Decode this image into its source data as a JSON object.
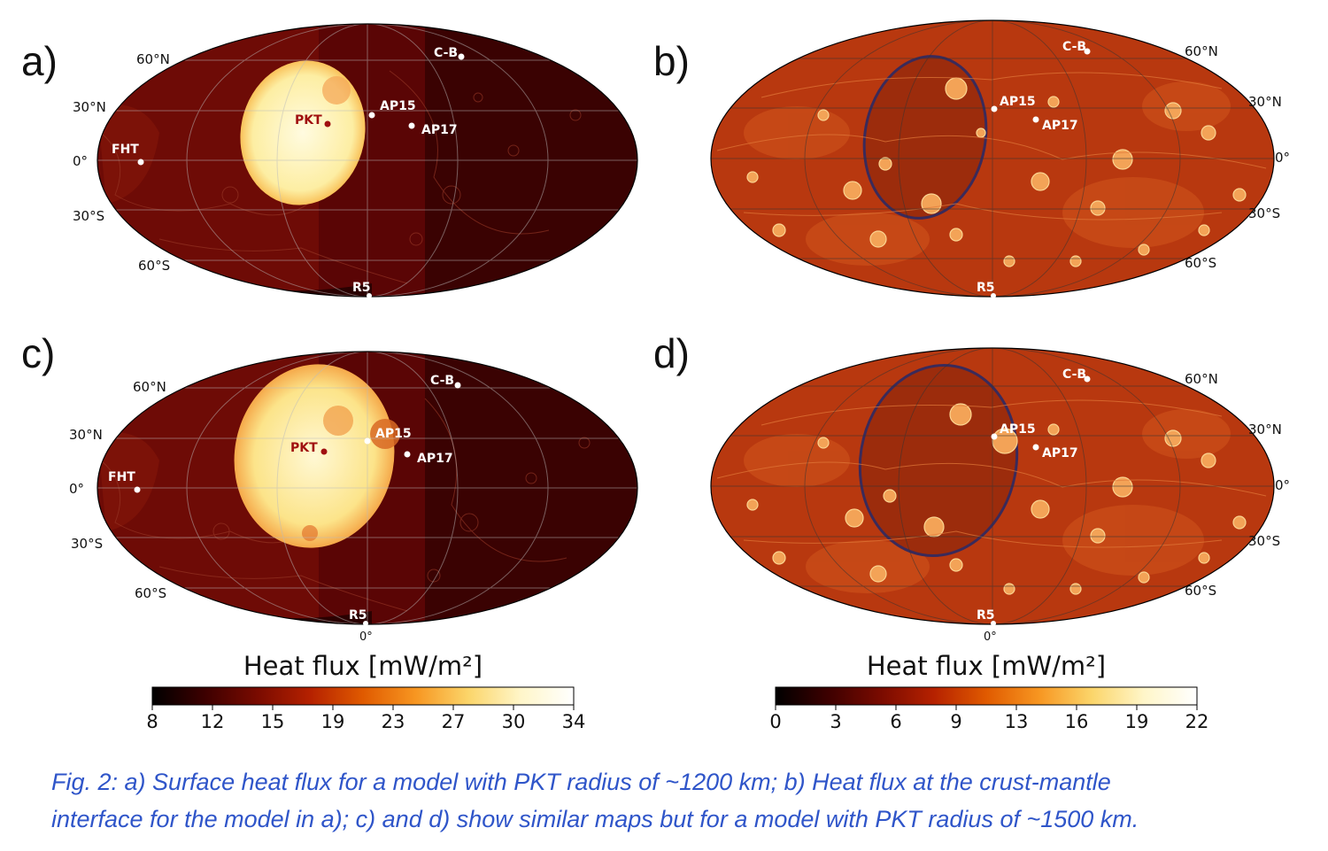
{
  "panels": [
    {
      "id": "a",
      "letter": "a)",
      "variant": "surface",
      "pkt": "small"
    },
    {
      "id": "b",
      "letter": "b)",
      "variant": "interface",
      "pkt": "small"
    },
    {
      "id": "c",
      "letter": "c)",
      "variant": "surface",
      "pkt": "large"
    },
    {
      "id": "d",
      "letter": "d)",
      "variant": "interface",
      "pkt": "large"
    }
  ],
  "lat_labels": {
    "n60": "60°N",
    "n30": "30°N",
    "eq": "0°",
    "s30": "30°S",
    "s60": "60°S"
  },
  "lon_label": "0°",
  "sites": {
    "pkt": "PKT",
    "ap15": "AP15",
    "ap17": "AP17",
    "cb": "C-B",
    "fht": "FHT",
    "r5": "R5"
  },
  "colorbars": {
    "left": {
      "title": "Heat flux [mW/m²]",
      "ticks": [
        "8",
        "12",
        "15",
        "19",
        "23",
        "27",
        "30",
        "34"
      ]
    },
    "right": {
      "title": "Heat flux [mW/m²]",
      "ticks": [
        "0",
        "3",
        "6",
        "9",
        "13",
        "16",
        "19",
        "22"
      ]
    }
  },
  "colormap": [
    "#000000",
    "#3d0000",
    "#7a0b00",
    "#b52100",
    "#e05a00",
    "#f79621",
    "#fbd56a",
    "#fff6c9",
    "#ffffff"
  ],
  "caption": [
    "Fig. 2: a) Surface heat flux for a model with PKT radius of ~1200 km; b) Heat flux at the crust-mantle",
    "interface for the model in a); c) and d) show similar maps but for a model with PKT radius of ~1500 km."
  ]
}
